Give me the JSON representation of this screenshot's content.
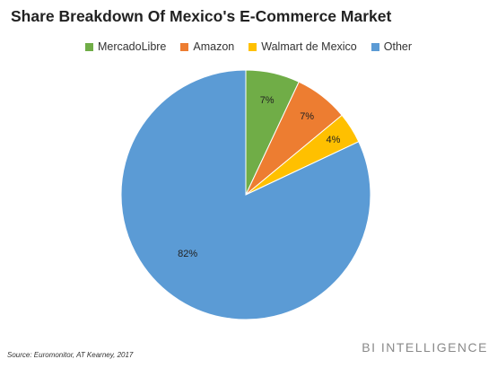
{
  "title": "Share Breakdown Of Mexico's E-Commerce Market",
  "source": "Source: Euromonitor, AT Kearney, 2017",
  "brand": "BI INTELLIGENCE",
  "chart_data": {
    "type": "pie",
    "title": "Share Breakdown Of Mexico's E-Commerce Market",
    "legend_position": "top",
    "slices": [
      {
        "name": "MercadoLibre",
        "value": 7,
        "label": "7%",
        "color": "#70ad47"
      },
      {
        "name": "Amazon",
        "value": 7,
        "label": "7%",
        "color": "#ed7d31"
      },
      {
        "name": "Walmart de Mexico",
        "value": 4,
        "label": "4%",
        "color": "#ffc000"
      },
      {
        "name": "Other",
        "value": 82,
        "label": "82%",
        "color": "#5b9bd5"
      }
    ]
  }
}
